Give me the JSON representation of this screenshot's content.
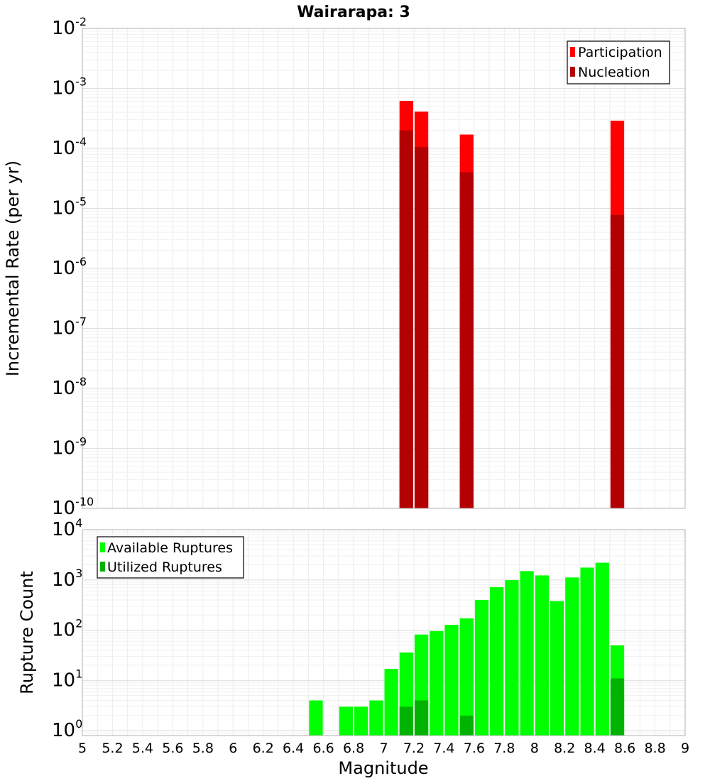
{
  "chart_data": [
    {
      "type": "bar",
      "panel": "top",
      "title": "Wairarapa: 3",
      "xlabel": "",
      "ylabel": "Incremental Rate (per yr)",
      "y_scale": "log",
      "ylim": [
        1e-10,
        0.01
      ],
      "xlim": [
        5,
        9
      ],
      "bar_width": 0.1,
      "y_tick_labels": [
        {
          "base": "10",
          "exp": "-10"
        },
        {
          "base": "10",
          "exp": "-9"
        },
        {
          "base": "10",
          "exp": "-8"
        },
        {
          "base": "10",
          "exp": "-7"
        },
        {
          "base": "10",
          "exp": "-6"
        },
        {
          "base": "10",
          "exp": "-5"
        },
        {
          "base": "10",
          "exp": "-4"
        },
        {
          "base": "10",
          "exp": "-3"
        },
        {
          "base": "10",
          "exp": "-2"
        }
      ],
      "legend_placement": "top-right",
      "series": [
        {
          "name": "Participation",
          "color": "#ff0000",
          "points": [
            {
              "x": 7.15,
              "y": 0.00062
            },
            {
              "x": 7.25,
              "y": 0.00041
            },
            {
              "x": 7.55,
              "y": 0.00017
            },
            {
              "x": 8.55,
              "y": 0.00029
            }
          ]
        },
        {
          "name": "Nucleation",
          "color": "#b30000",
          "points": [
            {
              "x": 7.15,
              "y": 0.0002
            },
            {
              "x": 7.25,
              "y": 0.000105
            },
            {
              "x": 7.55,
              "y": 4e-05
            },
            {
              "x": 8.55,
              "y": 7.8e-06
            }
          ]
        }
      ]
    },
    {
      "type": "bar",
      "panel": "bottom",
      "xlabel": "Magnitude",
      "ylabel": "Rupture Count",
      "y_scale": "log",
      "ylim": [
        0.8,
        10000
      ],
      "xlim": [
        5,
        9
      ],
      "bar_width": 0.1,
      "y_tick_labels": [
        {
          "base": "10",
          "exp": "0"
        },
        {
          "base": "10",
          "exp": "1"
        },
        {
          "base": "10",
          "exp": "2"
        },
        {
          "base": "10",
          "exp": "3"
        },
        {
          "base": "10",
          "exp": "4"
        }
      ],
      "x_tick_labels": [
        "5",
        "5.2",
        "5.4",
        "5.6",
        "5.8",
        "6",
        "6.2",
        "6.4",
        "6.6",
        "6.8",
        "7",
        "7.2",
        "7.4",
        "7.6",
        "7.8",
        "8",
        "8.2",
        "8.4",
        "8.6",
        "8.8",
        "9"
      ],
      "legend_placement": "top-left",
      "series": [
        {
          "name": "Available Ruptures",
          "color": "#00ff00",
          "points": [
            {
              "x": 6.55,
              "y": 4
            },
            {
              "x": 6.75,
              "y": 3
            },
            {
              "x": 6.85,
              "y": 3
            },
            {
              "x": 6.95,
              "y": 4
            },
            {
              "x": 7.05,
              "y": 17
            },
            {
              "x": 7.15,
              "y": 36
            },
            {
              "x": 7.25,
              "y": 82
            },
            {
              "x": 7.35,
              "y": 96
            },
            {
              "x": 7.45,
              "y": 128
            },
            {
              "x": 7.55,
              "y": 172
            },
            {
              "x": 7.65,
              "y": 400
            },
            {
              "x": 7.75,
              "y": 720
            },
            {
              "x": 7.85,
              "y": 990
            },
            {
              "x": 7.95,
              "y": 1500
            },
            {
              "x": 8.05,
              "y": 1230
            },
            {
              "x": 8.15,
              "y": 380
            },
            {
              "x": 8.25,
              "y": 1120
            },
            {
              "x": 8.35,
              "y": 1760
            },
            {
              "x": 8.45,
              "y": 2200
            },
            {
              "x": 8.55,
              "y": 50
            }
          ]
        },
        {
          "name": "Utilized Ruptures",
          "color": "#00b300",
          "points": [
            {
              "x": 7.15,
              "y": 3
            },
            {
              "x": 7.25,
              "y": 4
            },
            {
              "x": 7.55,
              "y": 2
            },
            {
              "x": 8.55,
              "y": 11
            }
          ]
        }
      ]
    }
  ]
}
